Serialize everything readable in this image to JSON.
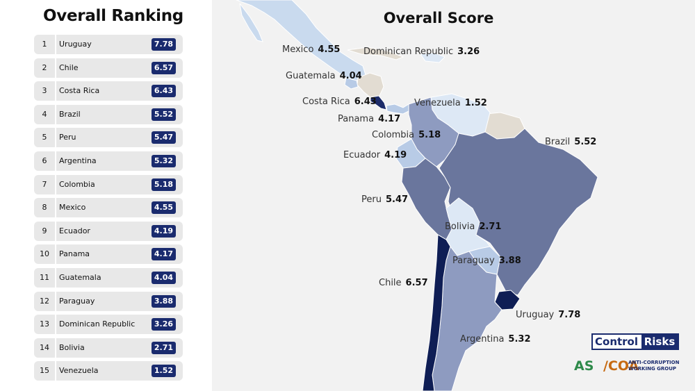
{
  "ranking": {
    "title": "Overall Ranking",
    "items": [
      {
        "rank": "1",
        "country": "Uruguay",
        "score": "7.78"
      },
      {
        "rank": "2",
        "country": "Chile",
        "score": "6.57"
      },
      {
        "rank": "3",
        "country": "Costa Rica",
        "score": "6.43"
      },
      {
        "rank": "4",
        "country": "Brazil",
        "score": "5.52"
      },
      {
        "rank": "5",
        "country": "Peru",
        "score": "5.47"
      },
      {
        "rank": "6",
        "country": "Argentina",
        "score": "5.32"
      },
      {
        "rank": "7",
        "country": "Colombia",
        "score": "5.18"
      },
      {
        "rank": "8",
        "country": "Mexico",
        "score": "4.55"
      },
      {
        "rank": "9",
        "country": "Ecuador",
        "score": "4.19"
      },
      {
        "rank": "10",
        "country": "Panama",
        "score": "4.17"
      },
      {
        "rank": "11",
        "country": "Guatemala",
        "score": "4.04"
      },
      {
        "rank": "12",
        "country": "Paraguay",
        "score": "3.88"
      },
      {
        "rank": "13",
        "country": "Dominican Republic",
        "score": "3.26"
      },
      {
        "rank": "14",
        "country": "Bolivia",
        "score": "2.71"
      },
      {
        "rank": "15",
        "country": "Venezuela",
        "score": "1.52"
      }
    ]
  },
  "map": {
    "title": "Overall Score",
    "labels": {
      "mexico": {
        "name": "Mexico",
        "value": "4.55"
      },
      "dominican_republic": {
        "name": "Dominican Republic",
        "value": "3.26"
      },
      "guatemala": {
        "name": "Guatemala",
        "value": "4.04"
      },
      "costa_rica": {
        "name": "Costa Rica",
        "value": "6.43"
      },
      "venezuela": {
        "name": "Venezuela",
        "value": "1.52"
      },
      "panama": {
        "name": "Panama",
        "value": "4.17"
      },
      "colombia": {
        "name": "Colombia",
        "value": "5.18"
      },
      "brazil": {
        "name": "Brazil",
        "value": "5.52"
      },
      "ecuador": {
        "name": "Ecuador",
        "value": "4.19"
      },
      "peru": {
        "name": "Peru",
        "value": "5.47"
      },
      "bolivia": {
        "name": "Bolivia",
        "value": "2.71"
      },
      "paraguay": {
        "name": "Paraguay",
        "value": "3.88"
      },
      "chile": {
        "name": "Chile",
        "value": "6.57"
      },
      "uruguay": {
        "name": "Uruguay",
        "value": "7.78"
      },
      "argentina": {
        "name": "Argentina",
        "value": "5.32"
      }
    }
  },
  "logos": {
    "control_risks": {
      "part1": "Control",
      "part2": "Risks"
    },
    "ascoa": {
      "as": "AS",
      "coa": "/COA",
      "subtitle": "ANTI-CORRUPTION WORKING GROUP"
    }
  },
  "colors": {
    "score_badge": "#1a2b6e",
    "ocean": "#f2f2f2",
    "non_scored_land": "#e2dcd2",
    "highest": "#0f1e55",
    "lowest": "#dde8f5"
  }
}
